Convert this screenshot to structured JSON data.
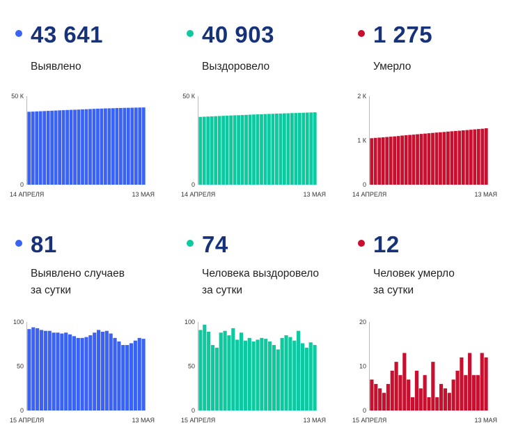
{
  "panels": [
    {
      "id": "cases-total",
      "color": "#3a63f5",
      "value": "43 641",
      "label_lines": [
        "Выявлено"
      ],
      "chart_data": {
        "type": "bar",
        "x_start_label": "14 АПРЕЛЯ",
        "x_end_label": "13 МАЯ",
        "ylim": [
          0,
          50000
        ],
        "yticks": [
          {
            "value": 0,
            "label": "0"
          },
          {
            "value": 50000,
            "label": "50 К"
          }
        ],
        "values": [
          41200,
          41300,
          41400,
          41500,
          41600,
          41700,
          41800,
          41900,
          42000,
          42100,
          42200,
          42300,
          42350,
          42450,
          42550,
          42650,
          42750,
          42850,
          42950,
          43000,
          43100,
          43150,
          43200,
          43300,
          43350,
          43400,
          43450,
          43500,
          43550,
          43600,
          43641
        ]
      }
    },
    {
      "id": "recovered-total",
      "color": "#0cc9a0",
      "value": "40 903",
      "label_lines": [
        "Выздоровело"
      ],
      "chart_data": {
        "type": "bar",
        "x_start_label": "14 АПРЕЛЯ",
        "x_end_label": "13 МАЯ",
        "ylim": [
          0,
          50000
        ],
        "yticks": [
          {
            "value": 0,
            "label": "0"
          },
          {
            "value": 50000,
            "label": "50 К"
          }
        ],
        "values": [
          38300,
          38400,
          38500,
          38600,
          38700,
          38800,
          38900,
          39000,
          39100,
          39200,
          39250,
          39350,
          39450,
          39550,
          39650,
          39750,
          39800,
          39900,
          40000,
          40050,
          40150,
          40200,
          40300,
          40350,
          40450,
          40500,
          40600,
          40650,
          40750,
          40800,
          40903
        ]
      }
    },
    {
      "id": "deaths-total",
      "color": "#c8102e",
      "value": "1 275",
      "label_lines": [
        "Умерло"
      ],
      "chart_data": {
        "type": "bar",
        "x_start_label": "14 АПРЕЛЯ",
        "x_end_label": "13 МАЯ",
        "ylim": [
          0,
          2000
        ],
        "yticks": [
          {
            "value": 0,
            "label": "0"
          },
          {
            "value": 1000,
            "label": "1 К"
          },
          {
            "value": 2000,
            "label": "2 К"
          }
        ],
        "values": [
          1050,
          1058,
          1064,
          1070,
          1078,
          1085,
          1092,
          1100,
          1110,
          1118,
          1125,
          1132,
          1140,
          1148,
          1155,
          1163,
          1170,
          1178,
          1185,
          1192,
          1200,
          1207,
          1214,
          1220,
          1228,
          1235,
          1242,
          1250,
          1258,
          1265,
          1275
        ]
      }
    },
    {
      "id": "cases-daily",
      "color": "#3a63f5",
      "value": "81",
      "label_lines": [
        "Выявлено случаев",
        "за сутки"
      ],
      "chart_data": {
        "type": "bar",
        "x_start_label": "15 АПРЕЛЯ",
        "x_end_label": "13 МАЯ",
        "ylim": [
          0,
          100
        ],
        "yticks": [
          {
            "value": 0,
            "label": "0"
          },
          {
            "value": 50,
            "label": "50"
          },
          {
            "value": 100,
            "label": "100"
          }
        ],
        "values": [
          92,
          94,
          93,
          91,
          90,
          90,
          88,
          88,
          87,
          88,
          86,
          84,
          82,
          82,
          83,
          85,
          88,
          91,
          89,
          90,
          87,
          82,
          78,
          74,
          74,
          76,
          79,
          82,
          81
        ]
      }
    },
    {
      "id": "recovered-daily",
      "color": "#0cc9a0",
      "value": "74",
      "label_lines": [
        "Человека выздоровело",
        "за сутки"
      ],
      "chart_data": {
        "type": "bar",
        "x_start_label": "15 АПРЕЛЯ",
        "x_end_label": "13 МАЯ",
        "ylim": [
          0,
          100
        ],
        "yticks": [
          {
            "value": 0,
            "label": "0"
          },
          {
            "value": 50,
            "label": "50"
          },
          {
            "value": 100,
            "label": "100"
          }
        ],
        "values": [
          91,
          97,
          89,
          74,
          71,
          88,
          90,
          85,
          93,
          80,
          88,
          79,
          82,
          78,
          80,
          82,
          81,
          78,
          74,
          69,
          82,
          85,
          83,
          79,
          90,
          76,
          71,
          77,
          74
        ]
      }
    },
    {
      "id": "deaths-daily",
      "color": "#c8102e",
      "value": "12",
      "label_lines": [
        "Человек умерло",
        "за сутки"
      ],
      "chart_data": {
        "type": "bar",
        "x_start_label": "15 АПРЕЛЯ",
        "x_end_label": "13 МАЯ",
        "ylim": [
          0,
          20
        ],
        "yticks": [
          {
            "value": 0,
            "label": "0"
          },
          {
            "value": 10,
            "label": "10"
          },
          {
            "value": 20,
            "label": "20"
          }
        ],
        "values": [
          7,
          6,
          5,
          4,
          6,
          9,
          11,
          8,
          13,
          7,
          3,
          9,
          5,
          8,
          3,
          11,
          3,
          6,
          5,
          4,
          7,
          9,
          12,
          8,
          13,
          8,
          8,
          13,
          12
        ]
      }
    }
  ]
}
